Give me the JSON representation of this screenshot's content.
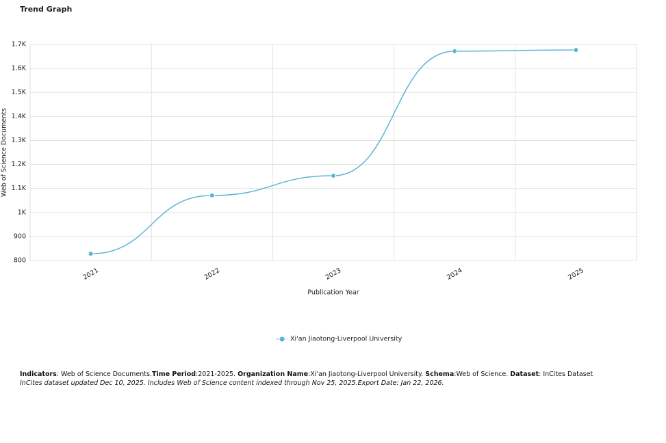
{
  "chart_data": {
    "type": "line",
    "title": "Trend Graph",
    "categories": [
      "2021",
      "2022",
      "2023",
      "2024",
      "2025"
    ],
    "series": [
      {
        "name": "Xi'an Jiaotong-Liverpool University",
        "color": "#5ab4d6",
        "values": [
          828,
          1071,
          1153,
          1672,
          1677
        ]
      }
    ],
    "ylim": [
      800,
      1700
    ],
    "yticks": [
      800,
      900,
      {
        "value": 1000,
        "label": "1K"
      },
      {
        "value": 1100,
        "label": "1.1K"
      },
      {
        "value": 1200,
        "label": "1.2K"
      },
      {
        "value": 1300,
        "label": "1.3K"
      },
      {
        "value": 1400,
        "label": "1.4K"
      },
      {
        "value": 1500,
        "label": "1.5K"
      },
      {
        "value": 1600,
        "label": "1.6K"
      },
      {
        "value": 1700,
        "label": "1.7K"
      }
    ],
    "xlabel": "Publication Year",
    "ylabel": "Web of Science Documents",
    "grid": true
  },
  "footer": {
    "parts": [
      {
        "label": "Indicators",
        "value": ": Web of Science Documents."
      },
      {
        "label": "Time Period",
        "value": ":2021-2025. "
      },
      {
        "label": "Organization Name",
        "value": ":Xi'an Jiaotong-Liverpool University. "
      },
      {
        "label": "Schema",
        "value": ":Web of Science. "
      },
      {
        "label": "Dataset",
        "value": ": InCites Dataset"
      }
    ],
    "note": "InCites dataset updated Dec 10, 2025. Includes Web of Science content indexed through Nov 25, 2025.Export Date: Jan 22, 2026."
  }
}
